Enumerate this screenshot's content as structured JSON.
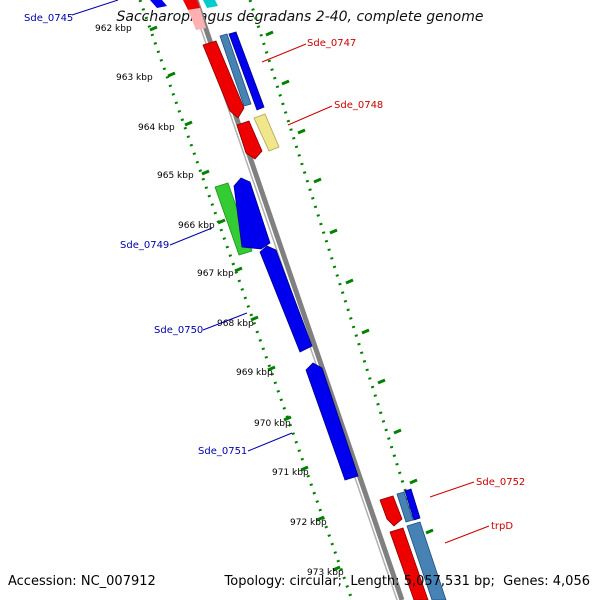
{
  "title": "Saccharophagus degradans 2-40, complete genome",
  "accession_label": "Accession:",
  "accession": "NC_007912",
  "topology_label": "Topology:",
  "topology": "circular",
  "length_label": "Length:",
  "length": "5,057,531 bp",
  "genes_label": "Genes:",
  "genes": "4,056",
  "ticks": [
    "962 kbp",
    "963 kbp",
    "964 kbp",
    "965 kbp",
    "966 kbp",
    "967 kbp",
    "968 kbp",
    "969 kbp",
    "970 kbp",
    "971 kbp",
    "972 kbp",
    "973 kbp"
  ],
  "gene_labels": {
    "sde_0745": "Sde_0745",
    "sde_0747": "Sde_0747",
    "sde_0748": "Sde_0748",
    "sde_0749": "Sde_0749",
    "sde_0750": "Sde_0750",
    "sde_0751": "Sde_0751",
    "sde_0752": "Sde_0752",
    "trpd": "trpD"
  },
  "colors": {
    "forward_label": "#cc0000",
    "reverse_label": "#0000aa",
    "backbone": "#808080",
    "blue_gene": "#0000ee",
    "red_gene": "#ee0000",
    "steel_gene": "#4682b4",
    "green_gene": "#33cc33",
    "yellow_gene": "#f0e68c",
    "dotted_ring": "#008000"
  }
}
